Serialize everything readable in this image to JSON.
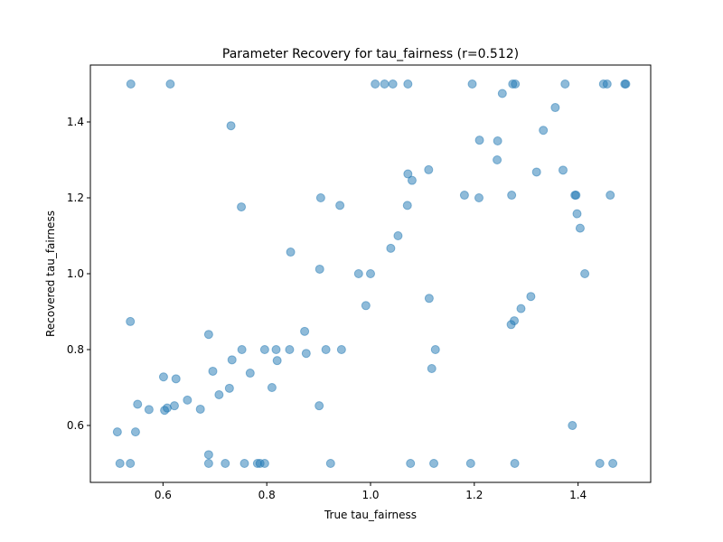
{
  "chart_data": {
    "type": "scatter",
    "title": "Parameter Recovery for tau_fairness (r=0.512)",
    "xlabel": "True tau_fairness",
    "ylabel": "Recovered tau_fairness",
    "xlim": [
      0.46,
      1.54
    ],
    "ylim": [
      0.45,
      1.55
    ],
    "xticks": [
      0.6,
      0.8,
      1.0,
      1.2,
      1.4
    ],
    "yticks": [
      0.6,
      0.8,
      1.0,
      1.2,
      1.4
    ],
    "xtick_labels": [
      "0.6",
      "0.8",
      "1.0",
      "1.2",
      "1.4"
    ],
    "ytick_labels": [
      "0.6",
      "0.8",
      "1.0",
      "1.2",
      "1.4"
    ],
    "grid": false,
    "marker_color": "#1f77b4",
    "points": [
      [
        0.538,
        1.5
      ],
      [
        0.614,
        1.5
      ],
      [
        0.731,
        1.39
      ],
      [
        0.751,
        1.176
      ],
      [
        0.846,
        1.057
      ],
      [
        0.904,
        1.2
      ],
      [
        0.941,
        1.18
      ],
      [
        0.902,
        1.012
      ],
      [
        1.009,
        1.5
      ],
      [
        1.027,
        1.5
      ],
      [
        1.043,
        1.5
      ],
      [
        1.072,
        1.5
      ],
      [
        1.196,
        1.5
      ],
      [
        1.254,
        1.475
      ],
      [
        1.274,
        1.5
      ],
      [
        1.279,
        1.5
      ],
      [
        1.375,
        1.5
      ],
      [
        1.449,
        1.5
      ],
      [
        1.456,
        1.5
      ],
      [
        1.49,
        1.5
      ],
      [
        1.492,
        1.5
      ],
      [
        1.356,
        1.438
      ],
      [
        1.333,
        1.378
      ],
      [
        1.21,
        1.352
      ],
      [
        1.245,
        1.35
      ],
      [
        1.244,
        1.3
      ],
      [
        1.112,
        1.274
      ],
      [
        1.072,
        1.263
      ],
      [
        1.08,
        1.246
      ],
      [
        1.32,
        1.268
      ],
      [
        1.371,
        1.273
      ],
      [
        1.181,
        1.207
      ],
      [
        1.209,
        1.2
      ],
      [
        1.272,
        1.207
      ],
      [
        1.394,
        1.207
      ],
      [
        1.396,
        1.207
      ],
      [
        1.462,
        1.207
      ],
      [
        1.071,
        1.18
      ],
      [
        1.398,
        1.158
      ],
      [
        1.404,
        1.12
      ],
      [
        1.053,
        1.1
      ],
      [
        1.039,
        1.067
      ],
      [
        0.977,
        1.0
      ],
      [
        1.0,
        1.0
      ],
      [
        1.413,
        1.0
      ],
      [
        1.309,
        0.94
      ],
      [
        1.113,
        0.935
      ],
      [
        0.991,
        0.916
      ],
      [
        1.29,
        0.908
      ],
      [
        1.277,
        0.876
      ],
      [
        1.271,
        0.866
      ],
      [
        0.537,
        0.874
      ],
      [
        0.688,
        0.84
      ],
      [
        0.873,
        0.848
      ],
      [
        0.752,
        0.8
      ],
      [
        0.796,
        0.8
      ],
      [
        0.818,
        0.8
      ],
      [
        0.844,
        0.8
      ],
      [
        0.914,
        0.8
      ],
      [
        0.944,
        0.8
      ],
      [
        1.125,
        0.8
      ],
      [
        0.876,
        0.79
      ],
      [
        0.733,
        0.773
      ],
      [
        0.82,
        0.771
      ],
      [
        1.118,
        0.75
      ],
      [
        0.696,
        0.743
      ],
      [
        0.768,
        0.738
      ],
      [
        0.601,
        0.728
      ],
      [
        0.625,
        0.723
      ],
      [
        0.81,
        0.7
      ],
      [
        0.728,
        0.698
      ],
      [
        0.708,
        0.681
      ],
      [
        0.647,
        0.667
      ],
      [
        0.551,
        0.656
      ],
      [
        0.622,
        0.652
      ],
      [
        0.901,
        0.652
      ],
      [
        0.573,
        0.642
      ],
      [
        0.608,
        0.646
      ],
      [
        0.672,
        0.643
      ],
      [
        0.603,
        0.64
      ],
      [
        1.389,
        0.6
      ],
      [
        0.512,
        0.583
      ],
      [
        0.547,
        0.583
      ],
      [
        0.688,
        0.523
      ],
      [
        0.517,
        0.5
      ],
      [
        0.537,
        0.5
      ],
      [
        0.688,
        0.5
      ],
      [
        0.72,
        0.5
      ],
      [
        0.757,
        0.5
      ],
      [
        0.782,
        0.5
      ],
      [
        0.787,
        0.5
      ],
      [
        0.796,
        0.5
      ],
      [
        0.923,
        0.5
      ],
      [
        1.077,
        0.5
      ],
      [
        1.122,
        0.5
      ],
      [
        1.193,
        0.5
      ],
      [
        1.278,
        0.5
      ],
      [
        1.442,
        0.5
      ],
      [
        1.467,
        0.5
      ]
    ]
  }
}
